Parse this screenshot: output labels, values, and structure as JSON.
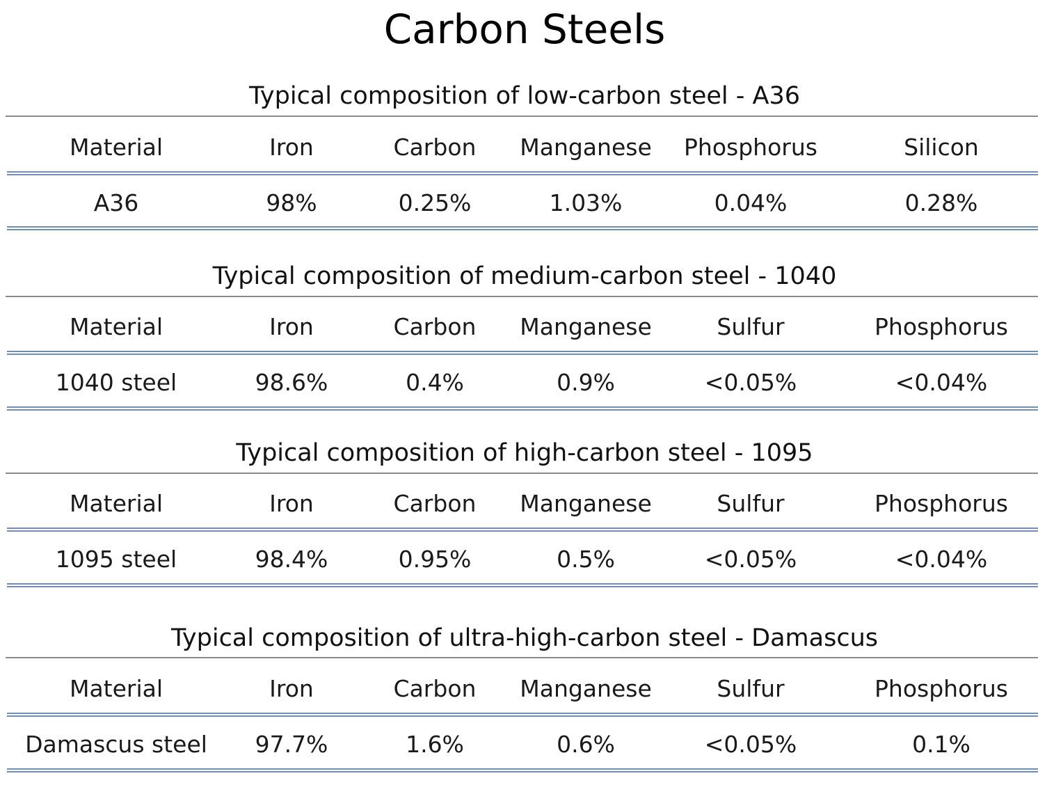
{
  "title": "Carbon Steels",
  "tables": [
    {
      "caption": "Typical composition of low-carbon steel - A36",
      "headers": [
        "Material",
        "Iron",
        "Carbon",
        "Manganese",
        "Phosphorus",
        "Silicon"
      ],
      "row": [
        "A36",
        "98%",
        "0.25%",
        "1.03%",
        "0.04%",
        "0.28%"
      ]
    },
    {
      "caption": "Typical composition of medium-carbon steel - 1040",
      "headers": [
        "Material",
        "Iron",
        "Carbon",
        "Manganese",
        "Sulfur",
        "Phosphorus"
      ],
      "row": [
        "1040 steel",
        "98.6%",
        "0.4%",
        "0.9%",
        "<0.05%",
        "<0.04%"
      ]
    },
    {
      "caption": "Typical composition of high-carbon steel - 1095",
      "headers": [
        "Material",
        "Iron",
        "Carbon",
        "Manganese",
        "Sulfur",
        "Phosphorus"
      ],
      "row": [
        "1095 steel",
        "98.4%",
        "0.95%",
        "0.5%",
        "<0.05%",
        "<0.04%"
      ]
    },
    {
      "caption": "Typical composition of ultra-high-carbon steel - Damascus",
      "headers": [
        "Material",
        "Iron",
        "Carbon",
        "Manganese",
        "Sulfur",
        "Phosphorus"
      ],
      "row": [
        "Damascus steel",
        "97.7%",
        "1.6%",
        "0.6%",
        "<0.05%",
        "0.1%"
      ]
    }
  ]
}
